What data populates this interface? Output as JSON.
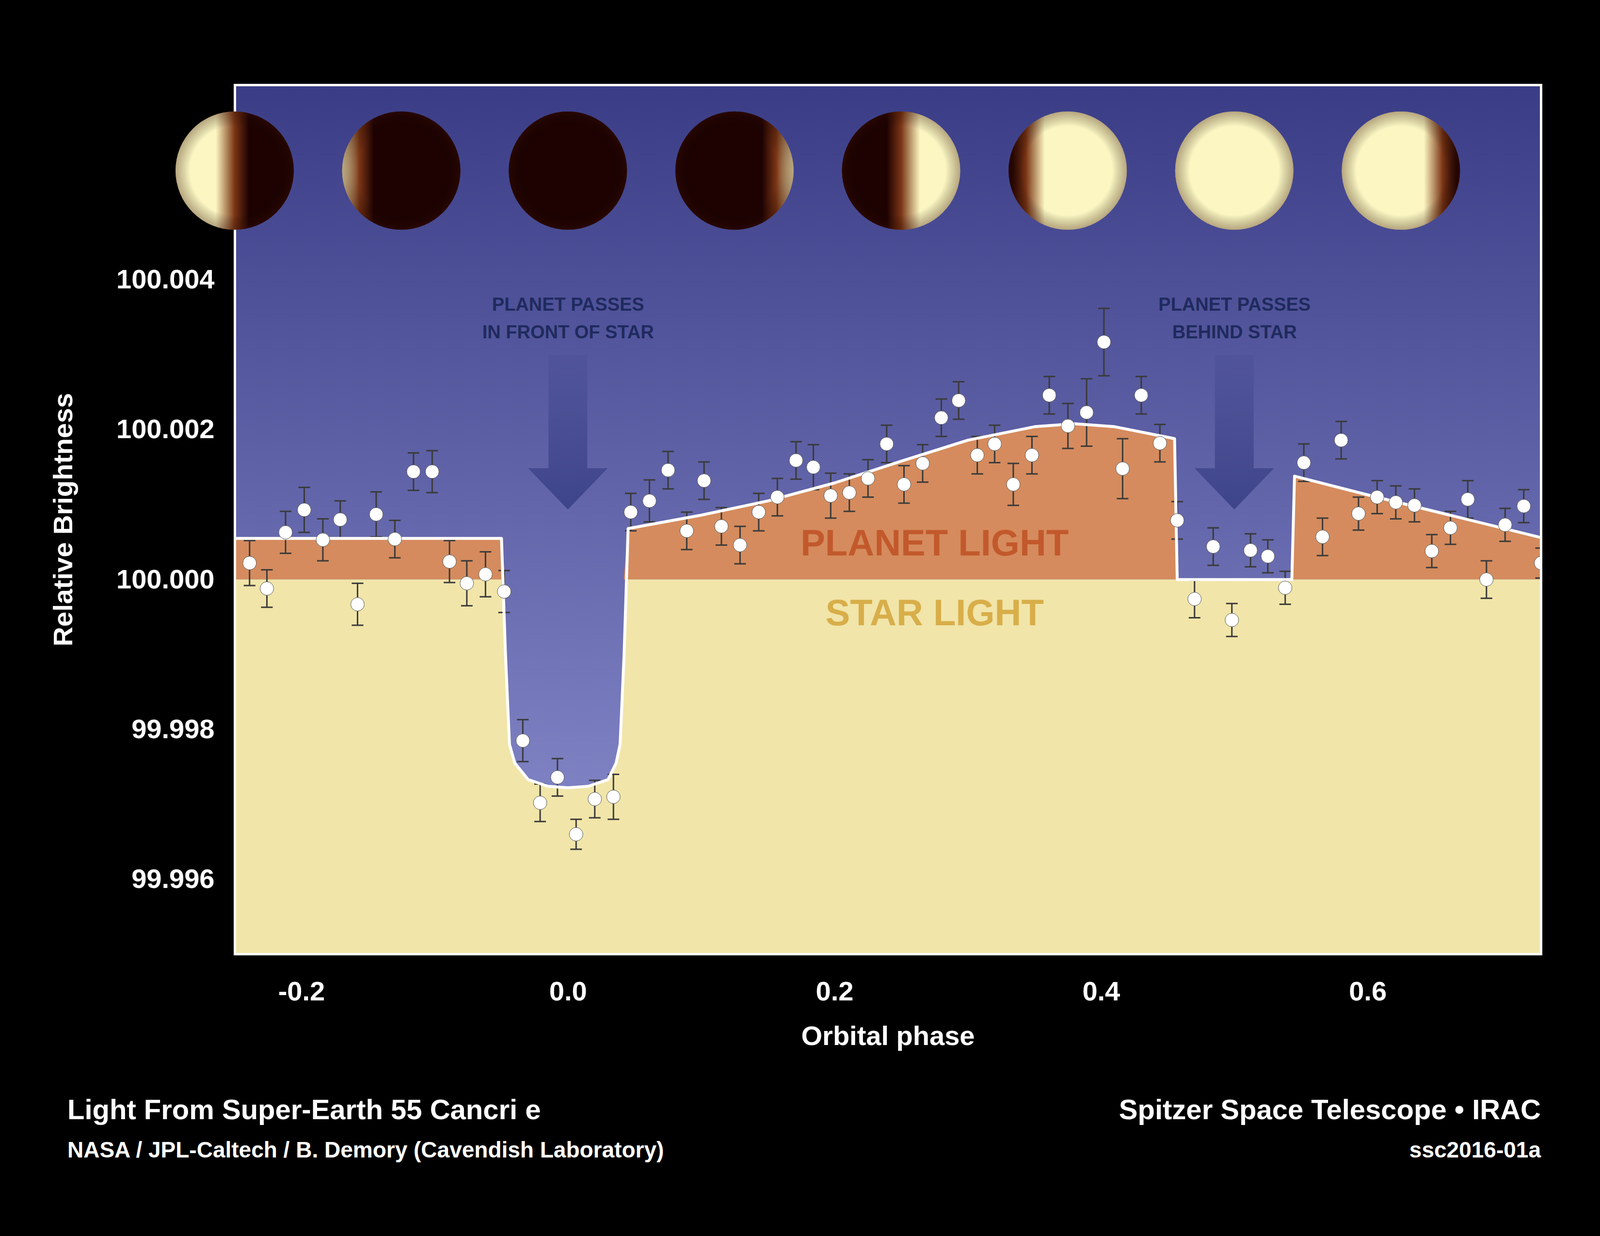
{
  "chart_data": {
    "type": "scatter",
    "title": "Light From Super-Earth 55 Cancri e",
    "credit": "NASA / JPL-Caltech / B. Demory (Cavendish Laboratory)",
    "instrument": "Spitzer Space Telescope • IRAC",
    "image_id": "ssc2016-01a",
    "x_label": "Orbital phase",
    "y_label": "Relative Brightness",
    "xlim": [
      -0.25,
      0.73
    ],
    "xticks": [
      -0.2,
      {
        "value": 0,
        "label": "0.0"
      },
      0.2,
      0.4,
      0.6
    ],
    "ylim": [
      99.995,
      100.0066
    ],
    "yticks": [
      99.996,
      99.998,
      {
        "value": 100,
        "label": "100.000"
      },
      100.002,
      100.004
    ],
    "grid": false,
    "points": {
      "color": "#ffffff",
      "marker": "circle",
      "x": [
        -0.239,
        -0.226,
        -0.212,
        -0.198,
        -0.184,
        -0.171,
        -0.158,
        -0.144,
        -0.13,
        -0.116,
        -0.102,
        -0.089,
        -0.076,
        -0.062,
        -0.048,
        -0.034,
        -0.021,
        -0.008,
        0.006,
        0.02,
        0.034,
        0.047,
        0.061,
        0.075,
        0.089,
        0.102,
        0.115,
        0.129,
        0.143,
        0.157,
        0.171,
        0.184,
        0.197,
        0.211,
        0.225,
        0.239,
        0.252,
        0.266,
        0.28,
        0.293,
        0.307,
        0.32,
        0.334,
        0.348,
        0.361,
        0.375,
        0.389,
        0.402,
        0.416,
        0.43,
        0.444,
        0.457,
        0.47,
        0.484,
        0.498,
        0.512,
        0.525,
        0.538,
        0.552,
        0.566,
        0.58,
        0.593,
        0.607,
        0.621,
        0.635,
        0.648,
        0.662,
        0.675,
        0.689,
        0.703,
        0.717,
        0.73
      ],
      "values": [
        100.00022,
        99.99988,
        100.00063,
        100.00093,
        100.00053,
        100.0008,
        99.99967,
        100.00087,
        100.00054,
        100.00144,
        100.00144,
        100.00024,
        99.99995,
        100.00007,
        99.99984,
        99.99785,
        99.99702,
        99.99736,
        99.9966,
        99.99707,
        99.9971,
        100.0009,
        100.00105,
        100.00146,
        100.00065,
        100.00132,
        100.00071,
        100.00046,
        100.0009,
        100.0011,
        100.00159,
        100.0015,
        100.00112,
        100.00116,
        100.00135,
        100.00181,
        100.00127,
        100.00155,
        100.00216,
        100.00239,
        100.00166,
        100.00181,
        100.00127,
        100.00166,
        100.00246,
        100.00205,
        100.00223,
        100.00317,
        100.00148,
        100.00246,
        100.00182,
        100.00079,
        99.99974,
        100.00044,
        99.99946,
        100.00039,
        100.00031,
        99.99989,
        100.00156,
        100.00057,
        100.00186,
        100.00088,
        100.0011,
        100.00103,
        100.00099,
        100.00038,
        100.00069,
        100.00107,
        100,
        100.00073,
        100.00098,
        100.00022
      ],
      "errors": [
        0.0003,
        0.00025,
        0.00028,
        0.0003,
        0.00028,
        0.00025,
        0.00028,
        0.0003,
        0.00025,
        0.00025,
        0.00028,
        0.00028,
        0.0003,
        0.0003,
        0.00028,
        0.00028,
        0.00025,
        0.00025,
        0.0002,
        0.00025,
        0.0003,
        0.00025,
        0.00028,
        0.00025,
        0.00025,
        0.00025,
        0.00025,
        0.00025,
        0.00025,
        0.00025,
        0.00025,
        0.0003,
        0.0003,
        0.00025,
        0.00025,
        0.00025,
        0.00025,
        0.00025,
        0.00025,
        0.00025,
        0.00025,
        0.00025,
        0.00028,
        0.00025,
        0.00025,
        0.0003,
        0.00045,
        0.00045,
        0.0004,
        0.00025,
        0.00025,
        0.00025,
        0.00025,
        0.00025,
        0.00022,
        0.00022,
        0.00022,
        0.00022,
        0.00025,
        0.00025,
        0.00025,
        0.00022,
        0.00022,
        0.00022,
        0.00022,
        0.00022,
        0.00022,
        0.00025,
        0.00025,
        0.00022,
        0.00022,
        0.0002
      ]
    },
    "model": {
      "color": "#ffffff",
      "line_style": "solid",
      "x": [
        -0.25,
        -0.05,
        -0.047,
        -0.044,
        -0.04,
        -0.03,
        -0.015,
        0,
        0.015,
        0.03,
        0.036,
        0.039,
        0.042,
        0.045,
        0.1,
        0.15,
        0.2,
        0.25,
        0.3,
        0.35,
        0.38,
        0.41,
        0.455,
        0.457,
        0.543,
        0.545,
        0.6,
        0.65,
        0.73
      ],
      "values": [
        100.00055,
        100.00055,
        99.999,
        99.9978,
        99.99755,
        99.99733,
        99.99724,
        99.99722,
        99.99724,
        99.99733,
        99.99755,
        99.9978,
        99.999,
        100.00068,
        100.00086,
        100.00105,
        100.00129,
        100.00158,
        100.00186,
        100.00204,
        100.00208,
        100.00204,
        100.00188,
        100,
        100,
        100.00138,
        100.00113,
        100.00091,
        100.00056
      ]
    },
    "star_level": 100,
    "regions": [
      {
        "text": "PLANET LIGHT",
        "color": "#d58b5d",
        "x": 0.275,
        "y": 100.00048
      },
      {
        "text": "STAR LIGHT",
        "color": "#f1e5a9",
        "x": 0.275,
        "y": 99.99955
      }
    ],
    "events": [
      {
        "text": "PLANET PASSES\nIN FRONT OF STAR",
        "x": 0,
        "y": 100.00352
      },
      {
        "text": "PLANET PASSES\nBEHIND STAR",
        "x": 0.5,
        "y": 100.00352
      }
    ],
    "phase_illustrations": [
      -0.25,
      -0.125,
      0,
      0.125,
      0.25,
      0.375,
      0.5,
      0.625
    ]
  }
}
